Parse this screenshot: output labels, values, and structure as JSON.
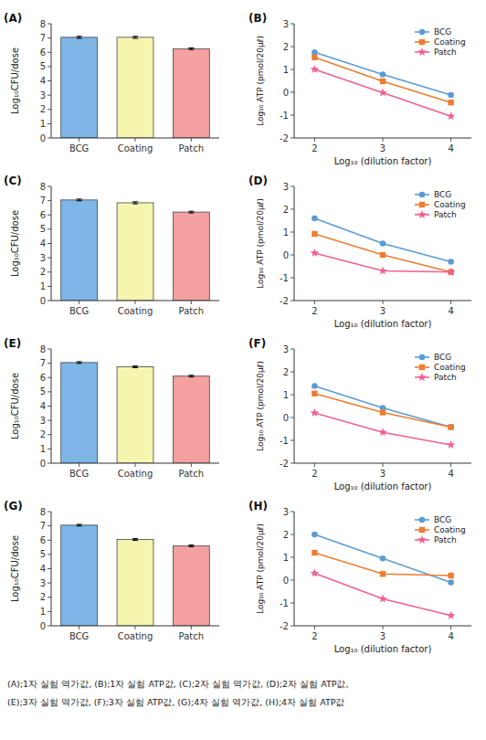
{
  "chart_data": [
    {
      "type": "bar",
      "title": "(A)",
      "ylabel": "Log₁₀CFU/dose",
      "categories": [
        "BCG",
        "Coating",
        "Patch"
      ],
      "values": [
        7.05,
        7.05,
        6.25
      ],
      "errors": [
        0.07,
        0.07,
        0.06
      ],
      "colors": [
        "#7EB6E8",
        "#F5F5B0",
        "#F4A0A0"
      ],
      "ylim": [
        0,
        8
      ],
      "yticks": [
        0,
        1,
        2,
        3,
        4,
        5,
        6,
        7,
        8
      ],
      "grid": false
    },
    {
      "type": "line",
      "title": "(B)",
      "xlabel": "Log₁₀ (dilution factor)",
      "ylabel": "Log₁₀ ATP (pmol/20μℓ)",
      "x": [
        2,
        3,
        4
      ],
      "series": [
        {
          "name": "BCG",
          "color": "#5B9BD5",
          "marker": "circle",
          "values": [
            1.75,
            0.78,
            -0.12
          ]
        },
        {
          "name": "Coating",
          "color": "#ED7D31",
          "marker": "square",
          "values": [
            1.53,
            0.48,
            -0.45
          ]
        },
        {
          "name": "Patch",
          "color": "#F06090",
          "marker": "star",
          "values": [
            1.0,
            -0.02,
            -1.05
          ]
        }
      ],
      "xlim": [
        1.7,
        4.3
      ],
      "xticks": [
        2,
        3,
        4
      ],
      "ylim": [
        -2,
        3
      ],
      "yticks": [
        -2,
        -1,
        0,
        1,
        2,
        3
      ],
      "legend": "upper right",
      "grid": false
    },
    {
      "type": "bar",
      "title": "(C)",
      "ylabel": "Log₁₀CFU/dose",
      "categories": [
        "BCG",
        "Coating",
        "Patch"
      ],
      "values": [
        7.05,
        6.85,
        6.2
      ],
      "errors": [
        0.06,
        0.07,
        0.06
      ],
      "colors": [
        "#7EB6E8",
        "#F5F5B0",
        "#F4A0A0"
      ],
      "ylim": [
        0,
        8
      ],
      "yticks": [
        0,
        1,
        2,
        3,
        4,
        5,
        6,
        7,
        8
      ],
      "grid": false
    },
    {
      "type": "line",
      "title": "(D)",
      "xlabel": "Log₁₀ (dilution factor)",
      "ylabel": "Log₁₀ ATP (pmol/20μℓ)",
      "x": [
        2,
        3,
        4
      ],
      "series": [
        {
          "name": "BCG",
          "color": "#5B9BD5",
          "marker": "circle",
          "values": [
            1.6,
            0.5,
            -0.3
          ]
        },
        {
          "name": "Coating",
          "color": "#ED7D31",
          "marker": "square",
          "values": [
            0.92,
            0.0,
            -0.75
          ]
        },
        {
          "name": "Patch",
          "color": "#F06090",
          "marker": "star",
          "values": [
            0.08,
            -0.7,
            -0.75
          ]
        }
      ],
      "xlim": [
        1.7,
        4.3
      ],
      "xticks": [
        2,
        3,
        4
      ],
      "ylim": [
        -2,
        3
      ],
      "yticks": [
        -2,
        -1,
        0,
        1,
        2,
        3
      ],
      "legend": "upper right",
      "grid": false
    },
    {
      "type": "bar",
      "title": "(E)",
      "ylabel": "Log₁₀CFU/dose",
      "categories": [
        "BCG",
        "Coating",
        "Patch"
      ],
      "values": [
        7.05,
        6.75,
        6.1
      ],
      "errors": [
        0.06,
        0.06,
        0.06
      ],
      "colors": [
        "#7EB6E8",
        "#F5F5B0",
        "#F4A0A0"
      ],
      "ylim": [
        0,
        8
      ],
      "yticks": [
        0,
        1,
        2,
        3,
        4,
        5,
        6,
        7,
        8
      ],
      "grid": false
    },
    {
      "type": "line",
      "title": "(F)",
      "xlabel": "Log₁₀ (dilution factor)",
      "ylabel": "Log₁₀ ATP (pmol/20μℓ)",
      "x": [
        2,
        3,
        4
      ],
      "series": [
        {
          "name": "BCG",
          "color": "#5B9BD5",
          "marker": "circle",
          "values": [
            1.38,
            0.42,
            -0.42
          ]
        },
        {
          "name": "Coating",
          "color": "#ED7D31",
          "marker": "square",
          "values": [
            1.05,
            0.22,
            -0.42
          ]
        },
        {
          "name": "Patch",
          "color": "#F06090",
          "marker": "star",
          "values": [
            0.2,
            -0.65,
            -1.2
          ]
        }
      ],
      "xlim": [
        1.7,
        4.3
      ],
      "xticks": [
        2,
        3,
        4
      ],
      "ylim": [
        -2,
        3
      ],
      "yticks": [
        -2,
        -1,
        0,
        1,
        2,
        3
      ],
      "legend": "upper right",
      "grid": false
    },
    {
      "type": "bar",
      "title": "(G)",
      "ylabel": "Log₁₀CFU/dose",
      "categories": [
        "BCG",
        "Coating",
        "Patch"
      ],
      "values": [
        7.05,
        6.05,
        5.6
      ],
      "errors": [
        0.06,
        0.06,
        0.06
      ],
      "colors": [
        "#7EB6E8",
        "#F5F5B0",
        "#F4A0A0"
      ],
      "ylim": [
        0,
        8
      ],
      "yticks": [
        0,
        1,
        2,
        3,
        4,
        5,
        6,
        7,
        8
      ],
      "grid": false
    },
    {
      "type": "line",
      "title": "(H)",
      "xlabel": "Log₁₀ (dilution factor)",
      "ylabel": "Log₁₀ ATP (pmol/20μℓ)",
      "x": [
        2,
        3,
        4
      ],
      "series": [
        {
          "name": "BCG",
          "color": "#5B9BD5",
          "marker": "circle",
          "values": [
            2.0,
            0.95,
            -0.1
          ]
        },
        {
          "name": "Coating",
          "color": "#ED7D31",
          "marker": "square",
          "values": [
            1.2,
            0.27,
            0.2
          ]
        },
        {
          "name": "Patch",
          "color": "#F06090",
          "marker": "star",
          "values": [
            0.3,
            -0.82,
            -1.55
          ]
        }
      ],
      "xlim": [
        1.7,
        4.3
      ],
      "xticks": [
        2,
        3,
        4
      ],
      "ylim": [
        -2,
        3
      ],
      "yticks": [
        -2,
        -1,
        0,
        1,
        2,
        3
      ],
      "legend": "upper right",
      "grid": false
    }
  ],
  "caption": [
    "(A);1자 실험 역가값, (B);1자 실험 ATP값, (C);2자 실험 역가값, (D);2자 실험 ATP값,",
    "(E);3자 실험 역가값, (F);3자 실험 ATP값, (G);4자 실험 역가값, (H);4자 실험 ATP값"
  ]
}
